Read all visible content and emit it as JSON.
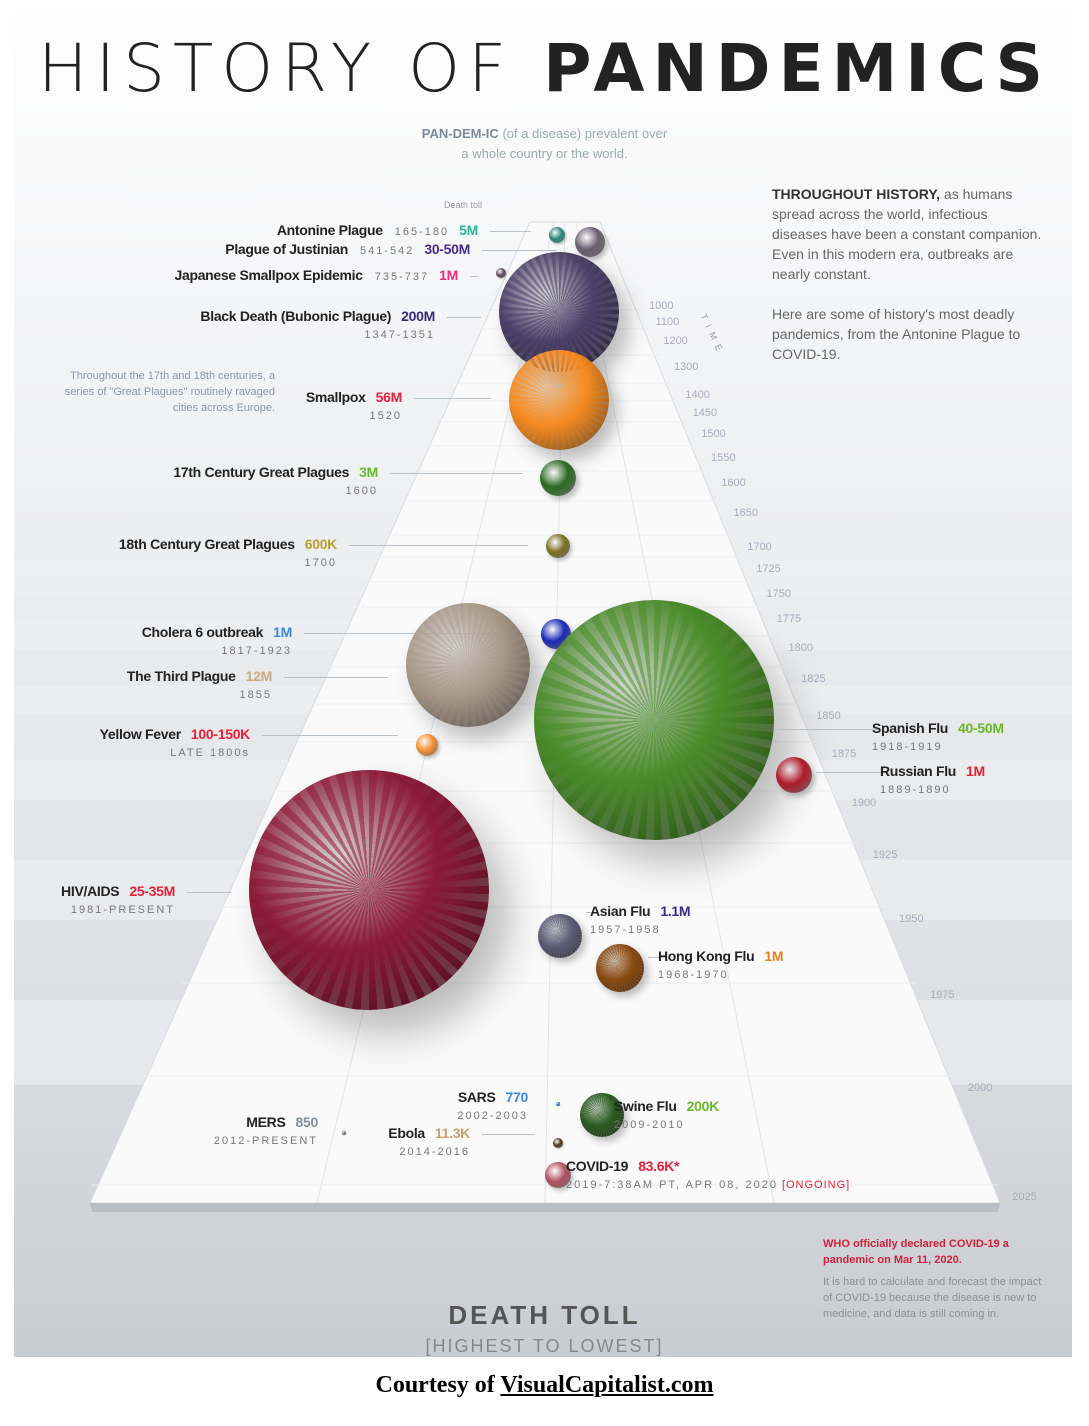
{
  "title": {
    "light": "HISTORY OF",
    "bold": "PANDEMICS"
  },
  "definition": {
    "term": "PAN-DEM-IC",
    "text": "(of a disease) prevalent over",
    "line2": "a whole country or the world."
  },
  "intro": {
    "lead": "THROUGHOUT HISTORY,",
    "p1": "as humans spread across the world, infectious diseases have been a constant companion. Even in this modern era, outbreaks are nearly constant.",
    "p2": "Here are some of history's most deadly pandemics, from the Antonine Plague to COVID-19."
  },
  "death_toll_hint": "Death toll",
  "time_label": "TIME",
  "side_note": "Throughout the 17th and 18th centuries, a series of \"Great Plagues\" routinely ravaged cities across Europe.",
  "timeline_ticks": [
    "1000",
    "1100",
    "1200",
    "1300",
    "1400",
    "1450",
    "1500",
    "1550",
    "1600",
    "1650",
    "1700",
    "1725",
    "1750",
    "1775",
    "1800",
    "1825",
    "1850",
    "1875",
    "1900",
    "1925",
    "1950",
    "1975",
    "2000",
    "2025"
  ],
  "pandemics": [
    {
      "name": "Antonine Plague",
      "years": "165-180",
      "toll": "5M",
      "toll_color": "#2bb5a0",
      "blob_color": "#2a8a7a"
    },
    {
      "name": "Plague of Justinian",
      "years": "541-542",
      "toll": "30-50M",
      "toll_color": "#4a2a8a",
      "blob_color": "#6a6070"
    },
    {
      "name": "Japanese Smallpox Epidemic",
      "years": "735-737",
      "toll": "1M",
      "toll_color": "#e8307a",
      "blob_color": "#5a4a5a"
    },
    {
      "name": "Black Death (Bubonic Plague)",
      "years": "1347-1351",
      "toll": "200M",
      "toll_color": "#3a2a7a",
      "blob_color": "#4a4068"
    },
    {
      "name": "Smallpox",
      "years": "1520",
      "toll": "56M",
      "toll_color": "#e8203a",
      "blob_color": "#f58a20"
    },
    {
      "name": "17th Century Great Plagues",
      "years": "1600",
      "toll": "3M",
      "toll_color": "#6ab82a",
      "blob_color": "#2a6a20"
    },
    {
      "name": "18th Century Great Plagues",
      "years": "1700",
      "toll": "600K",
      "toll_color": "#b8a030",
      "blob_color": "#7a7020"
    },
    {
      "name": "Cholera 6 outbreak",
      "years": "1817-1923",
      "toll": "1M",
      "toll_color": "#3a8ad8",
      "blob_color": "#1a2ab8"
    },
    {
      "name": "The Third Plague",
      "years": "1855",
      "toll": "12M",
      "toll_color": "#c8a880",
      "blob_color": "#a89888"
    },
    {
      "name": "Yellow Fever",
      "years": "LATE 1800s",
      "toll": "100-150K",
      "toll_color": "#e8203a",
      "blob_color": "#f29030"
    },
    {
      "name": "Spanish Flu",
      "years": "1918-1919",
      "toll": "40-50M",
      "toll_color": "#6ab82a",
      "blob_color": "#4a8a2a"
    },
    {
      "name": "Russian Flu",
      "years": "1889-1890",
      "toll": "1M",
      "toll_color": "#e8203a",
      "blob_color": "#b01a2a"
    },
    {
      "name": "HIV/AIDS",
      "years": "1981-PRESENT",
      "toll": "25-35M",
      "toll_color": "#e8203a",
      "blob_color": "#8a1a3a"
    },
    {
      "name": "Asian Flu",
      "years": "1957-1958",
      "toll": "1.1M",
      "toll_color": "#3a2a8a",
      "blob_color": "#5a5a72"
    },
    {
      "name": "Hong Kong Flu",
      "years": "1968-1970",
      "toll": "1M",
      "toll_color": "#e88020",
      "blob_color": "#8a4a10"
    },
    {
      "name": "SARS",
      "years": "2002-2003",
      "toll": "770",
      "toll_color": "#3a8ad8",
      "blob_color": "#3a5ab0"
    },
    {
      "name": "Swine Flu",
      "years": "2009-2010",
      "toll": "200K",
      "toll_color": "#6ab82a",
      "blob_color": "#2a5a20"
    },
    {
      "name": "MERS",
      "years": "2012-PRESENT",
      "toll": "850",
      "toll_color": "#8090a0",
      "blob_color": "#666"
    },
    {
      "name": "Ebola",
      "years": "2014-2016",
      "toll": "11.3K",
      "toll_color": "#c8a070",
      "blob_color": "#4a3a20"
    },
    {
      "name": "COVID-19",
      "years": "2019-7:38AM PT, APR 08, 2020",
      "status": "[ONGOING]",
      "toll": "83.6K*",
      "toll_color": "#e8203a",
      "blob_color": "#b05060"
    }
  ],
  "axis": {
    "title": "DEATH TOLL",
    "subtitle": "[HIGHEST TO LOWEST]"
  },
  "who_note": "WHO officially declared COVID-19 a pandemic on Mar 11, 2020.",
  "covid_note": "It is hard to calculate and forecast the impact of COVID-19 because the disease is new to medicine, and data is still coming in.",
  "caption": {
    "prefix": "Courtesy of",
    "link": "VisualCapitalist.com"
  }
}
